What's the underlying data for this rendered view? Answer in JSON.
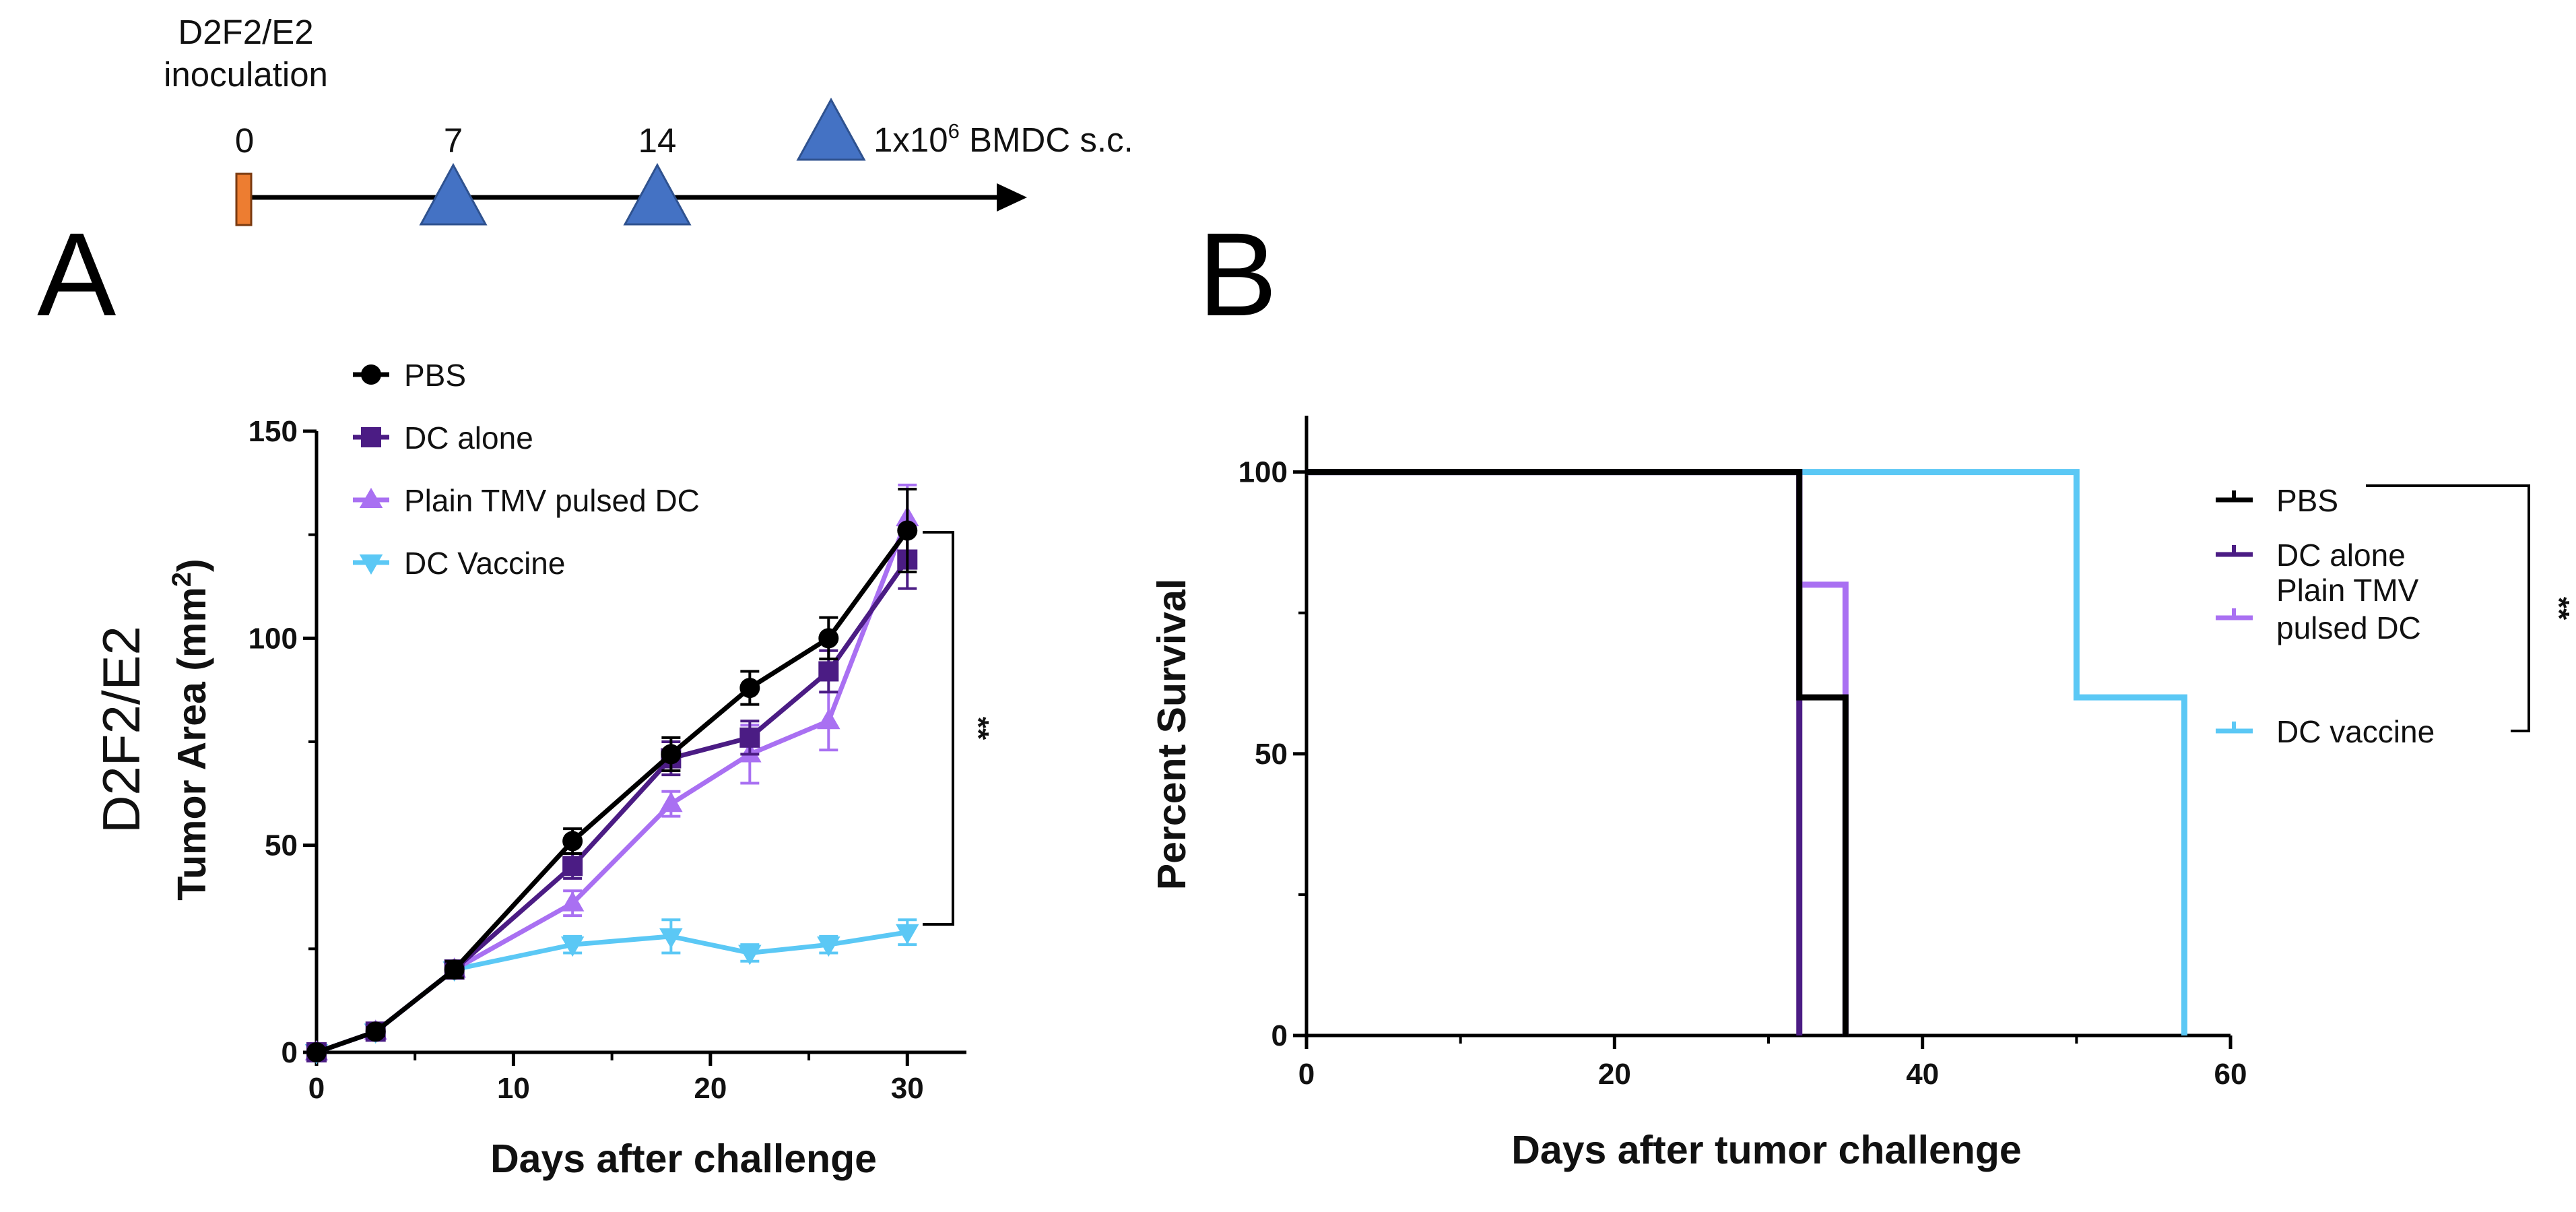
{
  "timeline": {
    "start_label_line1": "D2F2/E2",
    "start_label_line2": "inoculation",
    "days": [
      "0",
      "7",
      "14"
    ],
    "legend_prefix": "1x10",
    "legend_exponent": "6",
    "legend_suffix": " BMDC s.c.",
    "start_color": "#ED7D31",
    "triangle_color": "#4472C4"
  },
  "panels": {
    "a": "A",
    "b": "B"
  },
  "chart_data": [
    {
      "id": "A",
      "type": "line",
      "side_label": "D2F2/E2",
      "title": "",
      "xlabel": "Days after challenge",
      "ylabel": "Tumor Area (mm",
      "ylabel_sup": "2",
      "ylabel_close": ")",
      "xlim": [
        0,
        33
      ],
      "ylim": [
        0,
        150
      ],
      "xticks": [
        "0",
        "10",
        "20",
        "30"
      ],
      "yticks": [
        "0",
        "50",
        "100",
        "150"
      ],
      "legend_position": "top-left",
      "significance": "**",
      "series": [
        {
          "name": "PBS",
          "color": "#000000",
          "marker": "circle",
          "x": [
            0,
            3,
            7,
            13,
            18,
            22,
            26,
            30
          ],
          "y": [
            0,
            5,
            20,
            51,
            72,
            88,
            100,
            126
          ],
          "err": [
            0,
            1,
            2,
            3,
            4,
            4,
            5,
            10
          ]
        },
        {
          "name": "DC alone",
          "color": "#4B1C84",
          "marker": "square",
          "x": [
            0,
            3,
            7,
            13,
            18,
            22,
            26,
            30
          ],
          "y": [
            0,
            5,
            20,
            45,
            71,
            76,
            92,
            119
          ],
          "err": [
            0,
            1,
            2,
            3,
            4,
            4,
            5,
            7
          ]
        },
        {
          "name": "Plain TMV pulsed DC",
          "color": "#A970F2",
          "marker": "triangle-up",
          "x": [
            0,
            3,
            7,
            13,
            18,
            22,
            26,
            30
          ],
          "y": [
            0,
            5,
            20,
            36,
            60,
            72,
            80,
            129
          ],
          "err": [
            0,
            1,
            2,
            3,
            3,
            7,
            7,
            8
          ]
        },
        {
          "name": "DC Vaccine",
          "color": "#5BC8F5",
          "marker": "triangle-down",
          "x": [
            0,
            3,
            7,
            13,
            18,
            22,
            26,
            30
          ],
          "y": [
            0,
            5,
            20,
            26,
            28,
            24,
            26,
            29
          ],
          "err": [
            0,
            1,
            2,
            2,
            4,
            2,
            2,
            3
          ]
        }
      ]
    },
    {
      "id": "B",
      "type": "line",
      "title": "",
      "xlabel": "Days after tumor challenge",
      "ylabel": "Percent Survival",
      "xlim": [
        0,
        60
      ],
      "ylim": [
        0,
        110
      ],
      "xticks": [
        "0",
        "20",
        "40",
        "60"
      ],
      "yticks": [
        "0",
        "50",
        "100"
      ],
      "legend_position": "right",
      "significance": "**",
      "series": [
        {
          "name": "PBS",
          "color": "#000000",
          "steps": [
            [
              0,
              100
            ],
            [
              32,
              100
            ],
            [
              32,
              60
            ],
            [
              35,
              60
            ],
            [
              35,
              0
            ]
          ]
        },
        {
          "name": "DC alone",
          "color": "#4B1C84",
          "steps": [
            [
              0,
              100
            ],
            [
              32,
              100
            ],
            [
              32,
              0
            ]
          ]
        },
        {
          "name": "Plain TMV pulsed DC",
          "color": "#A970F2",
          "steps": [
            [
              0,
              100
            ],
            [
              32,
              100
            ],
            [
              32,
              80
            ],
            [
              35,
              80
            ],
            [
              35,
              0
            ]
          ]
        },
        {
          "name": "DC vaccine",
          "color": "#5BC8F5",
          "steps": [
            [
              0,
              100
            ],
            [
              50,
              100
            ],
            [
              50,
              60
            ],
            [
              57,
              60
            ],
            [
              57,
              0
            ]
          ]
        }
      ],
      "legend_labels": [
        {
          "lines": [
            "PBS"
          ]
        },
        {
          "lines": [
            "DC alone"
          ]
        },
        {
          "lines": [
            "Plain TMV",
            "pulsed DC"
          ]
        },
        {
          "lines": [
            "DC vaccine"
          ]
        }
      ]
    }
  ]
}
